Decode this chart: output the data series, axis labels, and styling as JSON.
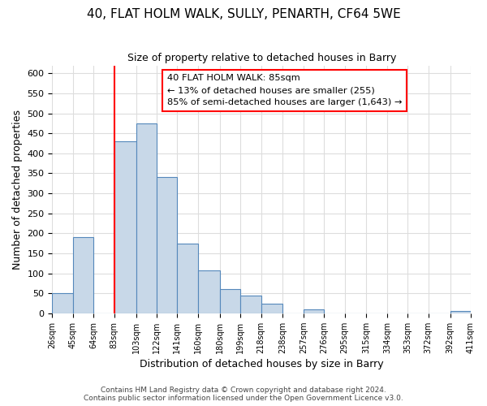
{
  "title1": "40, FLAT HOLM WALK, SULLY, PENARTH, CF64 5WE",
  "title2": "Size of property relative to detached houses in Barry",
  "xlabel": "Distribution of detached houses by size in Barry",
  "ylabel": "Number of detached properties",
  "bin_edges": [
    26,
    45,
    64,
    83,
    103,
    122,
    141,
    160,
    180,
    199,
    218,
    238,
    257,
    276,
    295,
    315,
    334,
    353,
    372,
    392,
    411
  ],
  "counts": [
    50,
    190,
    0,
    430,
    475,
    340,
    175,
    108,
    60,
    44,
    24,
    0,
    10,
    0,
    0,
    0,
    0,
    0,
    0,
    5
  ],
  "bar_color": "#c8d8e8",
  "bar_edge_color": "#5588bb",
  "vline_x": 83,
  "annotation_box_text": "40 FLAT HOLM WALK: 85sqm\n← 13% of detached houses are smaller (255)\n85% of semi-detached houses are larger (1,643) →",
  "ylim": [
    0,
    620
  ],
  "footer1": "Contains HM Land Registry data © Crown copyright and database right 2024.",
  "footer2": "Contains public sector information licensed under the Open Government Licence v3.0.",
  "tick_labels": [
    "26sqm",
    "45sqm",
    "64sqm",
    "83sqm",
    "103sqm",
    "122sqm",
    "141sqm",
    "160sqm",
    "180sqm",
    "199sqm",
    "218sqm",
    "238sqm",
    "257sqm",
    "276sqm",
    "295sqm",
    "315sqm",
    "334sqm",
    "353sqm",
    "372sqm",
    "392sqm",
    "411sqm"
  ],
  "yticks": [
    0,
    50,
    100,
    150,
    200,
    250,
    300,
    350,
    400,
    450,
    500,
    550,
    600
  ],
  "background_color": "#ffffff",
  "grid_color": "#dddddd",
  "title1_fontsize": 11,
  "title2_fontsize": 9,
  "xlabel_fontsize": 9,
  "ylabel_fontsize": 9,
  "tick_fontsize": 7,
  "annotation_fontsize": 8.2,
  "footer_fontsize": 6.5
}
